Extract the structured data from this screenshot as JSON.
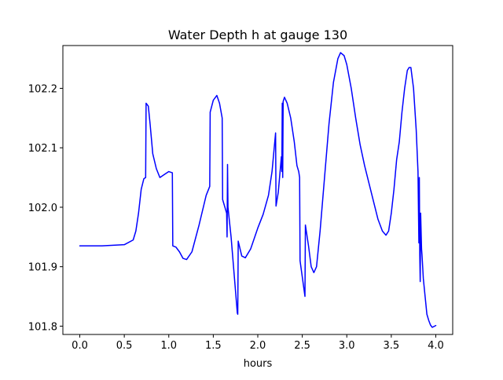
{
  "chart_data": {
    "type": "line",
    "title": "Water Depth h at gauge 130",
    "xlabel": "hours",
    "ylabel": "",
    "xlim": [
      -0.19,
      4.19
    ],
    "ylim": [
      101.786,
      102.272
    ],
    "xticks": [
      0.0,
      0.5,
      1.0,
      1.5,
      2.0,
      2.5,
      3.0,
      3.5,
      4.0
    ],
    "xtick_labels": [
      "0.0",
      "0.5",
      "1.0",
      "1.5",
      "2.0",
      "2.5",
      "3.0",
      "3.5",
      "4.0"
    ],
    "yticks": [
      101.8,
      101.9,
      102.0,
      102.1,
      102.2
    ],
    "ytick_labels": [
      "101.8",
      "101.9",
      "102.0",
      "102.1",
      "102.2"
    ],
    "grid": false,
    "series": [
      {
        "color": "#0000ff",
        "x": [
          0.0,
          0.25,
          0.5,
          0.6,
          0.63,
          0.66,
          0.69,
          0.72,
          0.74,
          0.745,
          0.77,
          0.79,
          0.82,
          0.86,
          0.9,
          0.95,
          1.0,
          1.04,
          1.045,
          1.08,
          1.12,
          1.16,
          1.2,
          1.26,
          1.34,
          1.42,
          1.46,
          1.465,
          1.5,
          1.54,
          1.57,
          1.6,
          1.605,
          1.65,
          1.655,
          1.66,
          1.665,
          1.7,
          1.77,
          1.775,
          1.78,
          1.82,
          1.86,
          1.92,
          2.0,
          2.06,
          2.12,
          2.16,
          2.2,
          2.205,
          2.23,
          2.265,
          2.27,
          2.275,
          2.28,
          2.285,
          2.3,
          2.33,
          2.37,
          2.41,
          2.44,
          2.46,
          2.47,
          2.475,
          2.53,
          2.535,
          2.57,
          2.6,
          2.63,
          2.66,
          2.7,
          2.75,
          2.8,
          2.85,
          2.9,
          2.93,
          2.97,
          3.0,
          3.05,
          3.1,
          3.15,
          3.2,
          3.25,
          3.3,
          3.35,
          3.4,
          3.44,
          3.47,
          3.5,
          3.53,
          3.56,
          3.58,
          3.59,
          3.62,
          3.65,
          3.68,
          3.7,
          3.72,
          3.75,
          3.78,
          3.8,
          3.81,
          3.815,
          3.82,
          3.825,
          3.83,
          3.835,
          3.84,
          3.845,
          3.86,
          3.88,
          3.9,
          3.92,
          3.94,
          3.96,
          4.0
        ],
        "y": [
          101.935,
          101.935,
          101.937,
          101.945,
          101.96,
          101.99,
          102.03,
          102.048,
          102.05,
          102.175,
          102.17,
          102.14,
          102.09,
          102.065,
          102.05,
          102.055,
          102.06,
          102.058,
          101.935,
          101.933,
          101.925,
          101.914,
          101.912,
          101.925,
          101.97,
          102.02,
          102.035,
          102.16,
          102.18,
          102.188,
          102.175,
          102.15,
          102.013,
          101.99,
          101.95,
          102.072,
          102.0,
          101.95,
          101.822,
          101.82,
          101.943,
          101.918,
          101.915,
          101.93,
          101.965,
          101.988,
          102.02,
          102.06,
          102.125,
          102.002,
          102.025,
          102.085,
          102.06,
          102.175,
          102.05,
          102.178,
          102.185,
          102.175,
          102.15,
          102.11,
          102.07,
          102.06,
          102.05,
          101.91,
          101.85,
          101.97,
          101.935,
          101.9,
          101.89,
          101.9,
          101.96,
          102.05,
          102.14,
          102.21,
          102.25,
          102.26,
          102.255,
          102.24,
          102.2,
          102.15,
          102.105,
          102.07,
          102.04,
          102.01,
          101.98,
          101.96,
          101.953,
          101.96,
          101.99,
          102.03,
          102.08,
          102.1,
          102.11,
          102.16,
          102.2,
          102.23,
          102.235,
          102.235,
          102.2,
          102.13,
          102.06,
          101.94,
          102.05,
          101.92,
          101.875,
          101.99,
          101.96,
          101.93,
          101.92,
          101.88,
          101.85,
          101.82,
          101.81,
          101.802,
          101.798,
          101.801
        ]
      }
    ]
  }
}
